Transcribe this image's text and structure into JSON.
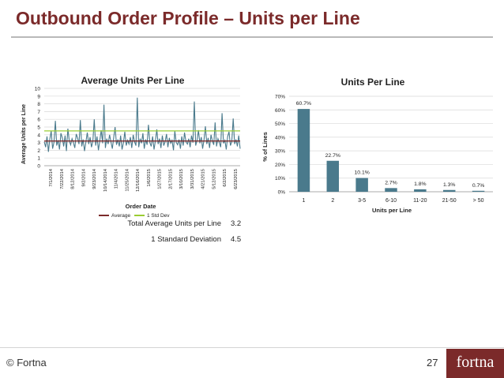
{
  "slide": {
    "title": "Outbound Order Profile – Units per Line",
    "copyright": "© Fortna",
    "page_number": "27",
    "logo_text": "fortna",
    "accent_color": "#7b2a2a"
  },
  "stats": [
    {
      "label": "Total Average Units per Line",
      "value": "3.2"
    },
    {
      "label": "1 Standard Deviation",
      "value": "4.5"
    }
  ],
  "chart_data": [
    {
      "type": "line",
      "title": "Average Units Per Line",
      "xlabel": "Order Date",
      "ylabel": "Average Units per Line",
      "ylim": [
        0,
        10
      ],
      "yticks": [
        "0",
        "1",
        "2",
        "3",
        "4",
        "5",
        "6",
        "7",
        "8",
        "9",
        "10"
      ],
      "x_tick_labels": [
        "7/1/2014",
        "7/22/2014",
        "8/12/2014",
        "9/2/2014",
        "9/23/2014",
        "10/14/2014",
        "11/4/2014",
        "11/25/2014",
        "12/16/2014",
        "1/6/2015",
        "1/27/2015",
        "2/17/2015",
        "3/10/2015",
        "3/31/2015",
        "4/21/2015",
        "5/12/2015",
        "6/2/2015",
        "6/23/2015"
      ],
      "grid": true,
      "legend_position": "bottom",
      "legend": [
        "Average",
        "1 Std Dev"
      ],
      "average": 3.2,
      "std_dev_line": 4.5,
      "series": [
        {
          "values": [
            3.1,
            2.4,
            3.8,
            1.8,
            3.4,
            4.5,
            2.2,
            3.0,
            5.8,
            2.6,
            3.3,
            2.1,
            4.2,
            3.6,
            2.5,
            3.9,
            1.9,
            4.8,
            3.2,
            2.7,
            3.5,
            3.0,
            2.3,
            4.1,
            3.6,
            2.8,
            5.9,
            2.5,
            3.4,
            1.9,
            3.1,
            4.3,
            2.8,
            3.7,
            2.4,
            3.2,
            6.0,
            2.6,
            3.8,
            2.0,
            3.3,
            4.6,
            2.9,
            7.9,
            2.3,
            3.5,
            2.8,
            4.0,
            3.1,
            2.2,
            3.6,
            5.0,
            2.7,
            3.4,
            2.5,
            3.9,
            2.1,
            3.0,
            4.4,
            2.6,
            3.3,
            2.8,
            3.7,
            2.3,
            4.0,
            3.1,
            2.6,
            8.8,
            2.4,
            3.5,
            2.9,
            4.2,
            2.2,
            3.4,
            2.7,
            5.3,
            3.0,
            2.5,
            3.8,
            2.1,
            3.2,
            4.7,
            2.8,
            3.5,
            2.3,
            3.9,
            2.6,
            3.1,
            4.1,
            2.4,
            3.6,
            2.9,
            3.3,
            2.0,
            4.5,
            3.0,
            2.7,
            3.4,
            2.2,
            3.8,
            2.6,
            4.3,
            3.1,
            2.8,
            3.5,
            2.4,
            3.9,
            3.0,
            8.3,
            2.6,
            3.3,
            4.6,
            2.9,
            3.7,
            2.2,
            3.4,
            5.1,
            2.8,
            3.6,
            2.3,
            4.0,
            3.2,
            2.7,
            5.6,
            2.5,
            3.5,
            3.0,
            2.4,
            6.8,
            2.9,
            3.3,
            2.1,
            3.8,
            4.4,
            2.6,
            3.1,
            6.1,
            2.8,
            3.4,
            2.5,
            3.9,
            2.2
          ]
        }
      ]
    },
    {
      "type": "bar",
      "title": "Units Per Line",
      "xlabel": "Units per Line",
      "ylabel": "% of Lines",
      "ylim": [
        0,
        70
      ],
      "yticks": [
        "0%",
        "10%",
        "20%",
        "30%",
        "40%",
        "50%",
        "60%",
        "70%"
      ],
      "grid": true,
      "categories": [
        "1",
        "2",
        "3-5",
        "6-10",
        "11-20",
        "21-50",
        "> 50"
      ],
      "values": [
        60.7,
        22.7,
        10.1,
        2.7,
        1.8,
        1.3,
        0.7
      ],
      "data_labels": [
        "60.7%",
        "22.7%",
        "10.1%",
        "2.7%",
        "1.8%",
        "1.3%",
        "0.7%"
      ],
      "bar_color": "#4a7a8c"
    }
  ],
  "colors": {
    "line_series": "#4a7a8c",
    "average_line": "#7b2a2a",
    "std_dev_line": "#9acd32"
  }
}
